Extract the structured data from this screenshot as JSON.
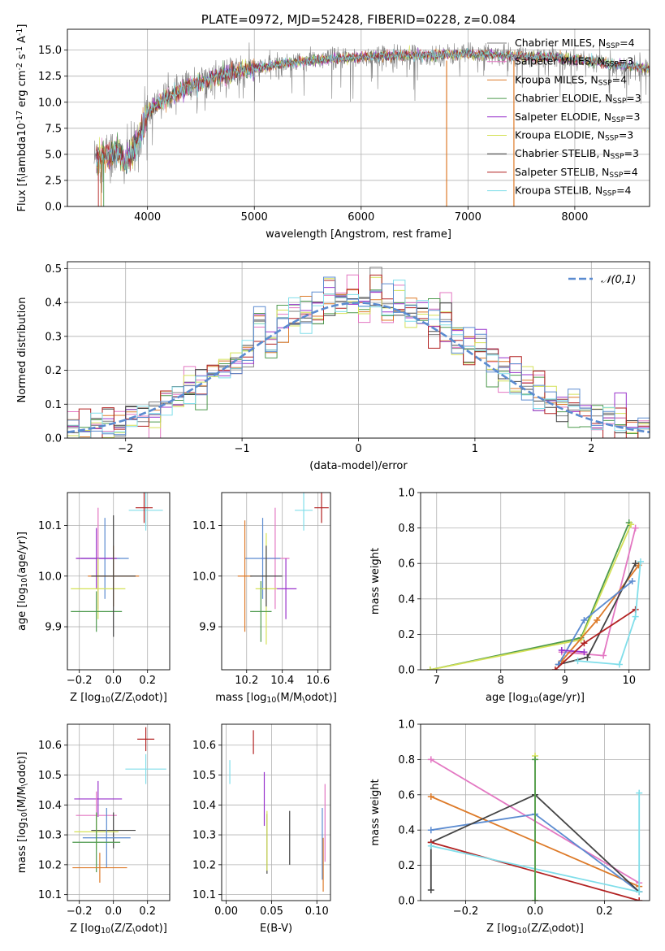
{
  "chart_data": [
    {
      "id": "spectrum",
      "type": "line",
      "title": "PLATE=0972, MJD=52428, FIBERID=0228, z=0.084",
      "xlabel": "wavelength [Angstrom, rest frame]",
      "ylabel": "Flux [f$_\\lambda$10$^{-17}$ erg cm$^{-2}$ s$^{-1}$ A$^{-1}$]",
      "xlim": [
        3250,
        8700
      ],
      "ylim": [
        0,
        17
      ],
      "xticks": [
        "4000",
        "5000",
        "6000",
        "7000",
        "8000"
      ],
      "yticks": [
        "0.0",
        "2.5",
        "5.0",
        "7.5",
        "10.0",
        "12.5",
        "15.0"
      ],
      "legend_position": "right",
      "legend": [
        {
          "name": "Chabrier MILES",
          "nssp": "4",
          "color": "#808080"
        },
        {
          "name": "Salpeter MILES",
          "nssp": "3",
          "color": "#e377c2"
        },
        {
          "name": "Kroupa MILES",
          "nssp": "4",
          "color": "#dd7a28"
        },
        {
          "name": "Chabrier ELODIE",
          "nssp": "3",
          "color": "#4e9a4e"
        },
        {
          "name": "Salpeter ELODIE",
          "nssp": "3",
          "color": "#9933cc"
        },
        {
          "name": "Kroupa ELODIE",
          "nssp": "3",
          "color": "#d4e157"
        },
        {
          "name": "Chabrier STELIB",
          "nssp": "3",
          "color": "#444444"
        },
        {
          "name": "Salpeter STELIB",
          "nssp": "4",
          "color": "#b22222"
        },
        {
          "name": "Kroupa STELIB",
          "nssp": "4",
          "color": "#80deea"
        }
      ],
      "continuum": {
        "x": [
          3500,
          3600,
          3700,
          3800,
          3900,
          4000,
          4100,
          4200,
          4300,
          4400,
          4600,
          4800,
          5000,
          5200,
          5500,
          5800,
          6000,
          6300,
          6600,
          6900,
          7200,
          7500,
          7800,
          8100,
          8400,
          8700
        ],
        "y": [
          4.5,
          4.8,
          5.2,
          4.3,
          6.0,
          9.0,
          10.0,
          10.5,
          11.0,
          11.6,
          12.3,
          12.8,
          13.2,
          13.6,
          14.0,
          14.2,
          14.3,
          14.5,
          14.5,
          14.6,
          14.6,
          14.4,
          14.3,
          14.0,
          13.6,
          13.2
        ]
      },
      "vertical_features": [
        {
          "x": 6800,
          "color": "#dd7a28"
        },
        {
          "x": 7430,
          "color": "#dd7a28"
        }
      ]
    },
    {
      "id": "residuals",
      "type": "bar",
      "xlabel": "(data-model)/error",
      "ylabel": "Normed distribution",
      "xlim": [
        -2.5,
        2.5
      ],
      "ylim": [
        0,
        0.52
      ],
      "xticks": [
        "−2",
        "−1",
        "0",
        "1",
        "2"
      ],
      "yticks": [
        "0.0",
        "0.1",
        "0.2",
        "0.3",
        "0.4",
        "0.5"
      ],
      "reference_curve": {
        "name": "$\\mathcal{N}(0,1)$",
        "color": "#5b8bd0"
      },
      "bin_width": 0.1,
      "series_colors": [
        "#808080",
        "#e377c2",
        "#dd7a28",
        "#4e9a4e",
        "#9933cc",
        "#d4e157",
        "#444444",
        "#b22222",
        "#80deea",
        "#5b8bd0"
      ],
      "bins": {
        "x": [
          -2.45,
          -2.35,
          -2.25,
          -2.15,
          -2.05,
          -1.95,
          -1.85,
          -1.75,
          -1.65,
          -1.55,
          -1.45,
          -1.35,
          -1.25,
          -1.15,
          -1.05,
          -0.95,
          -0.85,
          -0.75,
          -0.65,
          -0.55,
          -0.45,
          -0.35,
          -0.25,
          -0.15,
          -0.05,
          0.05,
          0.15,
          0.25,
          0.35,
          0.45,
          0.55,
          0.65,
          0.75,
          0.85,
          0.95,
          1.05,
          1.15,
          1.25,
          1.35,
          1.45,
          1.55,
          1.65,
          1.75,
          1.85,
          1.95,
          2.05,
          2.15,
          2.25,
          2.35,
          2.45
        ],
        "y": [
          0.02,
          0.025,
          0.03,
          0.035,
          0.045,
          0.06,
          0.07,
          0.08,
          0.11,
          0.12,
          0.14,
          0.15,
          0.18,
          0.21,
          0.2,
          0.24,
          0.34,
          0.28,
          0.35,
          0.37,
          0.36,
          0.38,
          0.42,
          0.4,
          0.42,
          0.4,
          0.44,
          0.38,
          0.39,
          0.36,
          0.37,
          0.34,
          0.32,
          0.3,
          0.28,
          0.26,
          0.22,
          0.2,
          0.17,
          0.16,
          0.13,
          0.12,
          0.1,
          0.09,
          0.08,
          0.06,
          0.05,
          0.04,
          0.03,
          0.025
        ]
      }
    },
    {
      "id": "age-vs-Z",
      "type": "scatter",
      "xlabel": "Z [log$_{10}$(Z/Z$_\\odot$)]",
      "ylabel": "age  [log$_{10}$(age/yr)]",
      "xlim": [
        -0.27,
        0.33
      ],
      "ylim": [
        9.815,
        10.165
      ],
      "xticks": [
        "−0.2",
        "0.0",
        "0.2"
      ],
      "yticks": [
        "9.9",
        "10.0",
        "10.1"
      ],
      "points": [
        {
          "x": 0.19,
          "y": 10.13,
          "xerr": 0.1,
          "yerr": 0.04,
          "color": "#80deea"
        },
        {
          "x": 0.18,
          "y": 10.135,
          "xerr": 0.05,
          "yerr": 0.03,
          "color": "#b22222"
        },
        {
          "x": -0.09,
          "y": 10.035,
          "xerr": 0.13,
          "yerr": 0.1,
          "color": "#e377c2"
        },
        {
          "x": -0.05,
          "y": 10.035,
          "xerr": 0.14,
          "yerr": 0.08,
          "color": "#5b8bd0"
        },
        {
          "x": -0.1,
          "y": 10.035,
          "xerr": 0.12,
          "yerr": 0.06,
          "color": "#9933cc"
        },
        {
          "x": 0.0,
          "y": 10.0,
          "xerr": 0.15,
          "yerr": 0.06,
          "color": "#dd7a28"
        },
        {
          "x": -0.09,
          "y": 9.975,
          "xerr": 0.16,
          "yerr": 0.06,
          "color": "#d4e157"
        },
        {
          "x": -0.1,
          "y": 9.93,
          "xerr": 0.15,
          "yerr": 0.04,
          "color": "#4e9a4e"
        },
        {
          "x": 0.0,
          "y": 10.0,
          "xerr": 0.13,
          "yerr": 0.12,
          "color": "#444444"
        }
      ]
    },
    {
      "id": "age-vs-mass",
      "type": "scatter",
      "xlabel": "mass [log$_{10}$(M/M$_\\odot$)]",
      "xlim": [
        10.06,
        10.67
      ],
      "ylim": [
        9.815,
        10.165
      ],
      "xticks": [
        "10.2",
        "10.4",
        "10.6"
      ],
      "yticks": [
        "9.9",
        "10.0",
        "10.1"
      ],
      "points": [
        {
          "x": 10.52,
          "y": 10.13,
          "xerr": 0.05,
          "yerr": 0.04,
          "color": "#80deea"
        },
        {
          "x": 10.62,
          "y": 10.135,
          "xerr": 0.04,
          "yerr": 0.03,
          "color": "#b22222"
        },
        {
          "x": 10.36,
          "y": 10.035,
          "xerr": 0.08,
          "yerr": 0.1,
          "color": "#e377c2"
        },
        {
          "x": 10.29,
          "y": 10.035,
          "xerr": 0.1,
          "yerr": 0.08,
          "color": "#5b8bd0"
        },
        {
          "x": 10.42,
          "y": 9.975,
          "xerr": 0.06,
          "yerr": 0.06,
          "color": "#9933cc"
        },
        {
          "x": 10.19,
          "y": 10.0,
          "xerr": 0.04,
          "yerr": 0.11,
          "color": "#dd7a28"
        },
        {
          "x": 10.31,
          "y": 9.975,
          "xerr": 0.06,
          "yerr": 0.11,
          "color": "#d4e157"
        },
        {
          "x": 10.28,
          "y": 9.93,
          "xerr": 0.06,
          "yerr": 0.06,
          "color": "#4e9a4e"
        },
        {
          "x": 10.31,
          "y": 10.0,
          "xerr": 0.09,
          "yerr": 0.06,
          "color": "#444444"
        }
      ]
    },
    {
      "id": "massweight-vs-age",
      "type": "line",
      "xlabel": "age  [log$_{10}$(age/yr)]",
      "ylabel": "mass weight",
      "xlim": [
        6.75,
        10.32
      ],
      "ylim": [
        0,
        1.0
      ],
      "xticks": [
        "7",
        "8",
        "9",
        "10"
      ],
      "yticks": [
        "0.0",
        "0.2",
        "0.4",
        "0.6",
        "0.8",
        "1.0"
      ],
      "series": [
        {
          "color": "#4e9a4e",
          "x": [
            6.9,
            9.25,
            10.0
          ],
          "y": [
            0.0,
            0.18,
            0.83
          ]
        },
        {
          "color": "#d4e157",
          "x": [
            6.9,
            9.25,
            10.03
          ],
          "y": [
            0.0,
            0.17,
            0.82
          ]
        },
        {
          "color": "#e377c2",
          "x": [
            8.95,
            9.6,
            10.1
          ],
          "y": [
            0.1,
            0.08,
            0.8
          ]
        },
        {
          "color": "#dd7a28",
          "x": [
            8.95,
            9.5,
            10.15
          ],
          "y": [
            0.05,
            0.28,
            0.59
          ]
        },
        {
          "color": "#444444",
          "x": [
            8.9,
            9.35,
            10.1
          ],
          "y": [
            0.03,
            0.07,
            0.6
          ]
        },
        {
          "color": "#5b8bd0",
          "x": [
            8.9,
            9.3,
            10.05
          ],
          "y": [
            0.03,
            0.28,
            0.5
          ]
        },
        {
          "color": "#9933cc",
          "x": [
            8.95,
            9.3
          ],
          "y": [
            0.11,
            0.1
          ]
        },
        {
          "color": "#b22222",
          "x": [
            8.85,
            9.3,
            10.1
          ],
          "y": [
            0.0,
            0.15,
            0.34
          ]
        },
        {
          "color": "#80deea",
          "x": [
            9.2,
            9.85,
            10.1,
            10.18
          ],
          "y": [
            0.05,
            0.03,
            0.3,
            0.61
          ]
        }
      ]
    },
    {
      "id": "mass-vs-Z",
      "type": "scatter",
      "xlabel": "Z [log$_{10}$(Z/Z$_\\odot$)]",
      "ylabel": "mass [log$_{10}$(M/M$_\\odot$)]",
      "xlim": [
        -0.27,
        0.33
      ],
      "ylim": [
        10.08,
        10.67
      ],
      "xticks": [
        "−0.2",
        "0.0",
        "0.2"
      ],
      "yticks": [
        "10.1",
        "10.2",
        "10.3",
        "10.4",
        "10.5",
        "10.6"
      ],
      "points": [
        {
          "x": 0.19,
          "y": 10.62,
          "xerr": 0.05,
          "yerr": 0.04,
          "color": "#b22222"
        },
        {
          "x": 0.19,
          "y": 10.52,
          "xerr": 0.12,
          "yerr": 0.05,
          "color": "#80deea"
        },
        {
          "x": -0.09,
          "y": 10.42,
          "xerr": 0.14,
          "yerr": 0.06,
          "color": "#9933cc"
        },
        {
          "x": -0.1,
          "y": 10.365,
          "xerr": 0.12,
          "yerr": 0.08,
          "color": "#e377c2"
        },
        {
          "x": 0.0,
          "y": 10.315,
          "xerr": 0.13,
          "yerr": 0.06,
          "color": "#444444"
        },
        {
          "x": -0.1,
          "y": 10.31,
          "xerr": 0.13,
          "yerr": 0.06,
          "color": "#d4e157"
        },
        {
          "x": -0.04,
          "y": 10.29,
          "xerr": 0.14,
          "yerr": 0.1,
          "color": "#5b8bd0"
        },
        {
          "x": -0.1,
          "y": 10.275,
          "xerr": 0.14,
          "yerr": 0.1,
          "color": "#4e9a4e"
        },
        {
          "x": -0.08,
          "y": 10.19,
          "xerr": 0.16,
          "yerr": 0.05,
          "color": "#dd7a28"
        }
      ]
    },
    {
      "id": "mass-vs-EBV",
      "type": "scatter",
      "xlabel": "E(B-V)",
      "xlim": [
        -0.005,
        0.115
      ],
      "ylim": [
        10.08,
        10.67
      ],
      "xticks": [
        "0.00",
        "0.05",
        "0.10"
      ],
      "yticks": [
        "10.1",
        "10.2",
        "10.3",
        "10.4",
        "10.5",
        "10.6"
      ],
      "points": [
        {
          "x": 0.03,
          "y": 10.61,
          "yerr": 0.04,
          "color": "#b22222"
        },
        {
          "x": 0.004,
          "y": 10.51,
          "yerr": 0.04,
          "color": "#80deea"
        },
        {
          "x": 0.042,
          "y": 10.42,
          "yerr": 0.09,
          "color": "#9933cc"
        },
        {
          "x": 0.045,
          "y": 10.27,
          "yerr": 0.1,
          "color": "#444444"
        },
        {
          "x": 0.045,
          "y": 10.28,
          "yerr": 0.1,
          "color": "#d4e157"
        },
        {
          "x": 0.07,
          "y": 10.29,
          "yerr": 0.09,
          "color": "#444444"
        },
        {
          "x": 0.109,
          "y": 10.34,
          "yerr": 0.13,
          "color": "#e377c2"
        },
        {
          "x": 0.106,
          "y": 10.27,
          "yerr": 0.12,
          "color": "#5b8bd0"
        },
        {
          "x": 0.107,
          "y": 10.2,
          "yerr": 0.09,
          "color": "#dd7a28"
        }
      ]
    },
    {
      "id": "massweight-vs-Z",
      "type": "line",
      "xlabel": "Z [log$_{10}$(Z/Z$_\\odot$)]",
      "ylabel": "mass weight",
      "xlim": [
        -0.33,
        0.33
      ],
      "ylim": [
        0,
        1.0
      ],
      "xticks": [
        "−0.2",
        "0.0",
        "0.2"
      ],
      "yticks": [
        "0.0",
        "0.2",
        "0.4",
        "0.6",
        "0.8",
        "1.0"
      ],
      "series": [
        {
          "color": "#e377c2",
          "x": [
            -0.3,
            0.3
          ],
          "y": [
            0.8,
            0.1
          ]
        },
        {
          "color": "#dd7a28",
          "x": [
            -0.3,
            0.3
          ],
          "y": [
            0.59,
            0.08
          ]
        },
        {
          "color": "#5b8bd0",
          "x": [
            -0.3,
            0.0,
            0.3
          ],
          "y": [
            0.4,
            0.49,
            0.05
          ]
        },
        {
          "color": "#444444",
          "x": [
            -0.3,
            -0.3,
            0.0,
            0.3
          ],
          "y": [
            0.06,
            0.33,
            0.6,
            0.05
          ]
        },
        {
          "color": "#b22222",
          "x": [
            -0.3,
            0.3
          ],
          "y": [
            0.33,
            0.0
          ]
        },
        {
          "color": "#80deea",
          "x": [
            -0.3,
            0.3,
            0.3
          ],
          "y": [
            0.31,
            0.05,
            0.61
          ]
        },
        {
          "color": "#d4e157",
          "x": [
            0.0,
            0.0
          ],
          "y": [
            0.0,
            0.82
          ]
        },
        {
          "color": "#4e9a4e",
          "x": [
            0.0,
            0.0
          ],
          "y": [
            0.0,
            0.8
          ]
        }
      ]
    }
  ]
}
